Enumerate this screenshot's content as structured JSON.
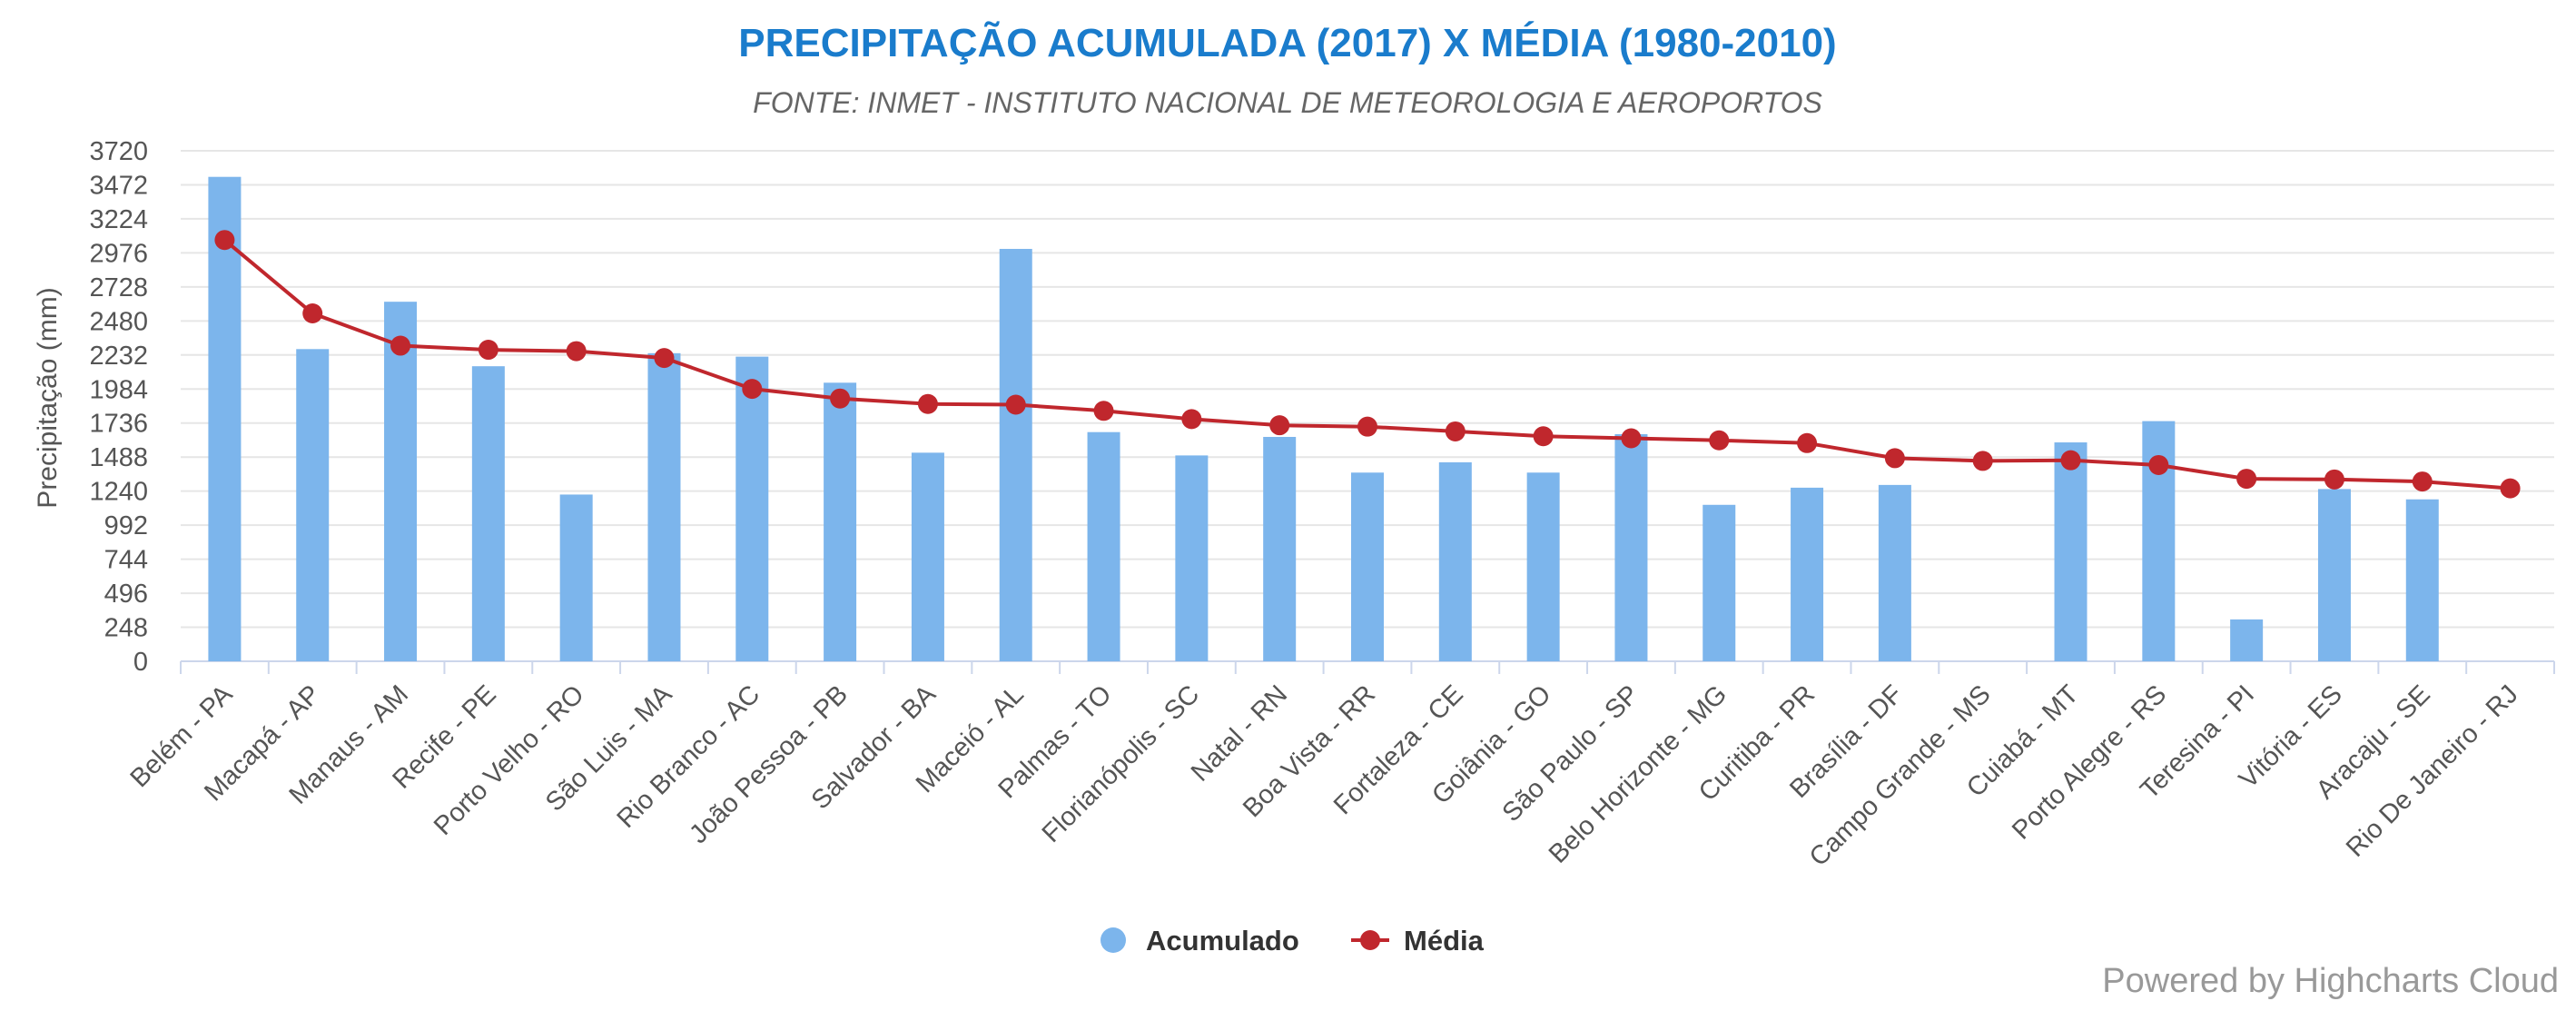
{
  "chart_data": {
    "type": "bar",
    "title": "PRECIPITAÇÃO ACUMULADA (2017) X MÉDIA (1980-2010)",
    "subtitle": "FONTE: INMET - INSTITUTO NACIONAL DE METEOROLOGIA E AEROPORTOS",
    "ylabel": "Precipitação (mm)",
    "xlabel": "",
    "ylim": [
      0,
      3720
    ],
    "yticks": [
      0,
      248,
      496,
      744,
      992,
      1240,
      1488,
      1736,
      1984,
      2232,
      2480,
      2728,
      2976,
      3224,
      3472,
      3720
    ],
    "grid": true,
    "legend_position": "bottom-center",
    "categories": [
      "Belém - PA",
      "Macapá - AP",
      "Manaus - AM",
      "Recife - PE",
      "Porto Velho - RO",
      "São Luis - MA",
      "Rio Branco - AC",
      "João Pessoa - PB",
      "Salvador - BA",
      "Maceió - AL",
      "Palmas - TO",
      "Florianópolis - SC",
      "Natal - RN",
      "Boa Vista - RR",
      "Fortaleza - CE",
      "Goiânia - GO",
      "São Paulo - SP",
      "Belo Horizonte - MG",
      "Curitiba - PR",
      "Brasília - DF",
      "Campo Grande - MS",
      "Cuiabá - MT",
      "Porto Alegre - RS",
      "Teresina - PI",
      "Vitória - ES",
      "Aracaju - SE",
      "Rio De Janeiro - RJ"
    ],
    "series": [
      {
        "name": "Acumulado",
        "type": "column",
        "color": "#7cb5ec",
        "values": [
          3530,
          2275,
          2620,
          2150,
          1215,
          2245,
          2220,
          2030,
          1520,
          3005,
          1670,
          1500,
          1635,
          1375,
          1450,
          1375,
          1655,
          1140,
          1265,
          1285,
          null,
          1595,
          1750,
          305,
          1255,
          1180,
          null
        ]
      },
      {
        "name": "Média",
        "type": "line",
        "color": "#c0272d",
        "values": [
          3070,
          2535,
          2300,
          2270,
          2260,
          2210,
          1985,
          1915,
          1875,
          1870,
          1825,
          1765,
          1720,
          1710,
          1675,
          1640,
          1625,
          1610,
          1590,
          1480,
          1460,
          1465,
          1430,
          1330,
          1325,
          1310,
          1260
        ]
      }
    ]
  },
  "credits": "Powered by Highcharts Cloud",
  "colors": {
    "title": "#1a7ccc",
    "subtitle": "#666666",
    "axis_text": "#555555",
    "grid": "#e6e6e6",
    "credits": "#999999"
  }
}
